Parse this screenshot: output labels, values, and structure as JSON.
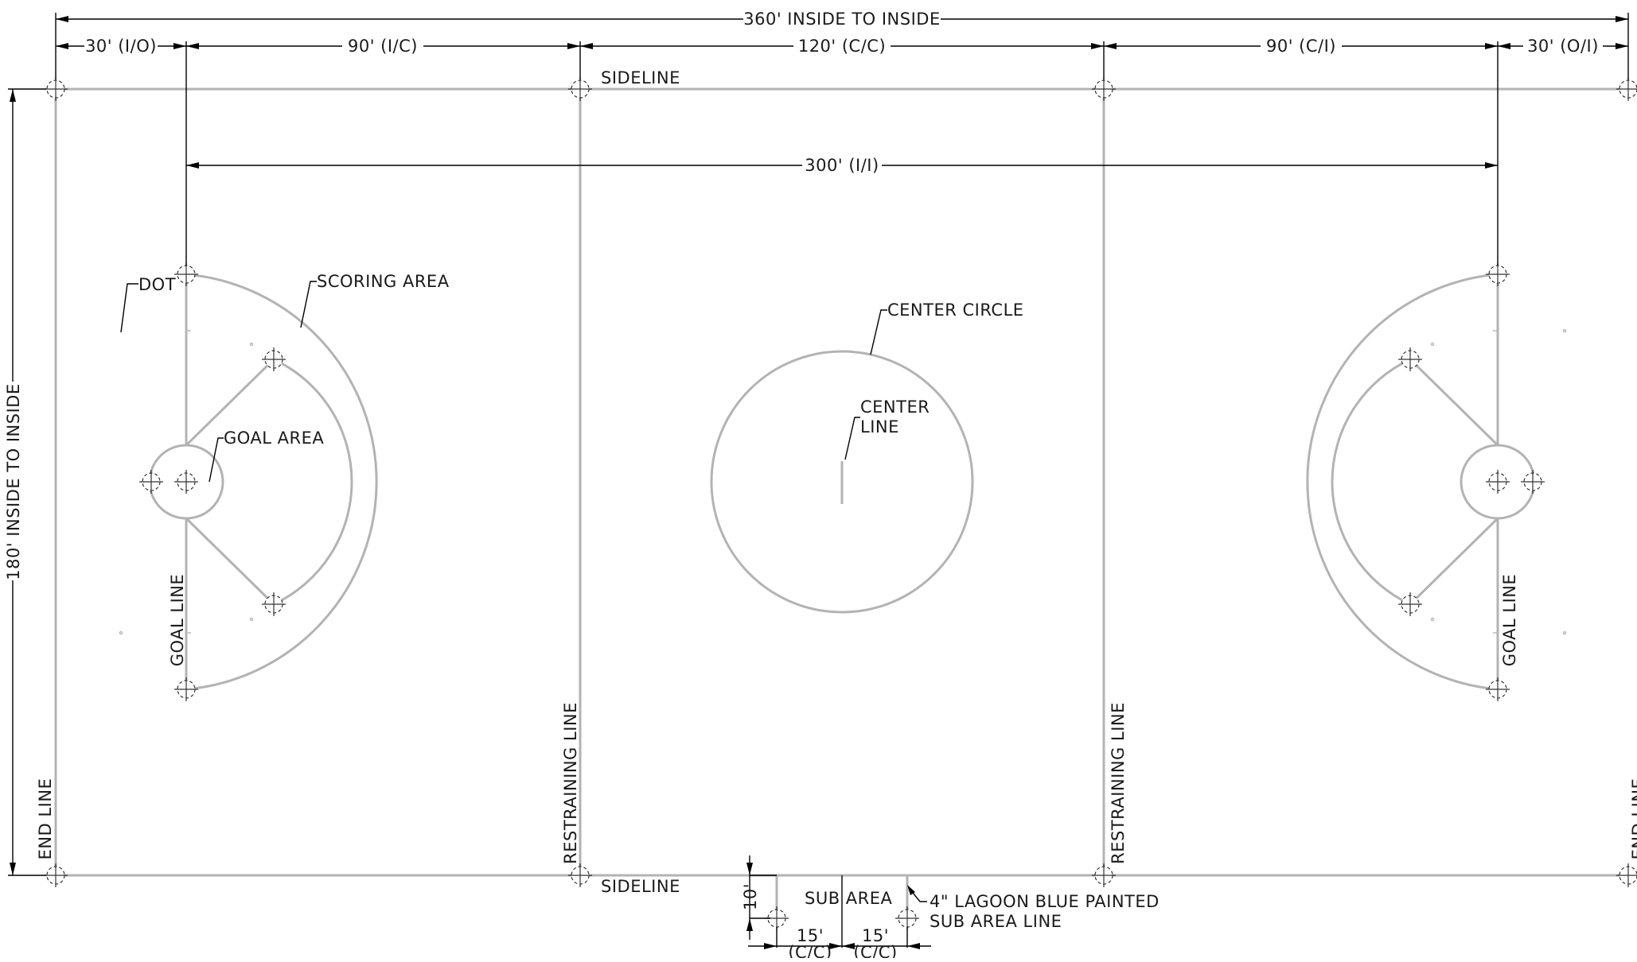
{
  "dimensions": {
    "overall_length": "360' INSIDE TO INSIDE",
    "end_to_goal_left": "30' (I/O)",
    "goal_to_restrain_left": "90' (I/C)",
    "restrain_to_restrain": "120' (C/C)",
    "restrain_to_goal_right": "90' (C/I)",
    "goal_to_end_right": "30' (O/I)",
    "goal_to_goal": "300' (I/I)",
    "overall_width": "180' INSIDE TO INSIDE",
    "sub_area_depth": "10'",
    "sub_left_width": "15'",
    "sub_left_note": "(C/C)",
    "sub_right_width": "15'",
    "sub_right_note": "(C/C)"
  },
  "labels": {
    "sideline_top": "SIDELINE",
    "sideline_bottom": "SIDELINE",
    "dot": "DOT",
    "scoring_area": "SCORING AREA",
    "goal_area": "GOAL AREA",
    "center_circle": "CENTER CIRCLE",
    "center_line_1": "CENTER",
    "center_line_2": "LINE",
    "goal_line_left": "GOAL LINE",
    "goal_line_right": "GOAL LINE",
    "restraining_line_left": "RESTRAINING LINE",
    "restraining_line_right": "RESTRAINING LINE",
    "end_line_left": "END LINE",
    "end_line_right": "END LINE",
    "sub_area": "SUB AREA",
    "painted_note_1": "4\" LAGOON BLUE PAINTED",
    "painted_note_2": "SUB AREA LINE"
  }
}
